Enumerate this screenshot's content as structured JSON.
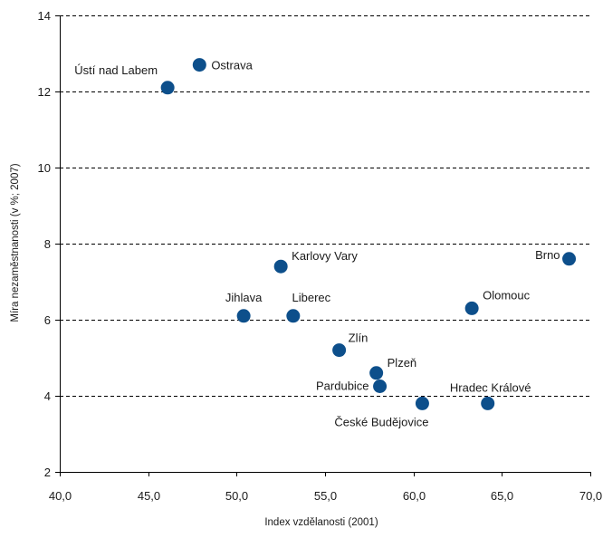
{
  "chart_data": {
    "type": "scatter",
    "title": "",
    "xlabel": "Index vzdělanosti (2001)",
    "ylabel": "Míra nezaměstnanosti (v %; 2007)",
    "xlim": [
      40,
      70
    ],
    "ylim": [
      2,
      14
    ],
    "x_ticks": [
      40,
      45,
      50,
      55,
      60,
      65,
      70
    ],
    "x_tick_labels": [
      "40,0",
      "45,0",
      "50,0",
      "55,0",
      "60,0",
      "65,0",
      "70,0"
    ],
    "y_ticks": [
      2,
      4,
      6,
      8,
      10,
      12,
      14
    ],
    "y_tick_labels": [
      "2",
      "4",
      "6",
      "8",
      "10",
      "12",
      "14"
    ],
    "grid": "horizontal dashed",
    "legend": "none",
    "marker_color": "#0d4f8b",
    "points": [
      {
        "label": "Ústí nad Labem",
        "x": 46.1,
        "y": 12.1
      },
      {
        "label": "Ostrava",
        "x": 47.9,
        "y": 12.7
      },
      {
        "label": "Karlovy Vary",
        "x": 52.5,
        "y": 7.4
      },
      {
        "label": "Brno",
        "x": 68.8,
        "y": 7.6
      },
      {
        "label": "Jihlava",
        "x": 50.4,
        "y": 6.1
      },
      {
        "label": "Liberec",
        "x": 53.2,
        "y": 6.1
      },
      {
        "label": "Olomouc",
        "x": 63.3,
        "y": 6.3
      },
      {
        "label": "Zlín",
        "x": 55.8,
        "y": 5.2
      },
      {
        "label": "Plzeň",
        "x": 57.9,
        "y": 4.6
      },
      {
        "label": "Pardubice",
        "x": 58.1,
        "y": 4.25
      },
      {
        "label": "České Budějovice",
        "x": 60.5,
        "y": 3.8
      },
      {
        "label": "Hradec Králové",
        "x": 64.2,
        "y": 3.8
      }
    ]
  }
}
